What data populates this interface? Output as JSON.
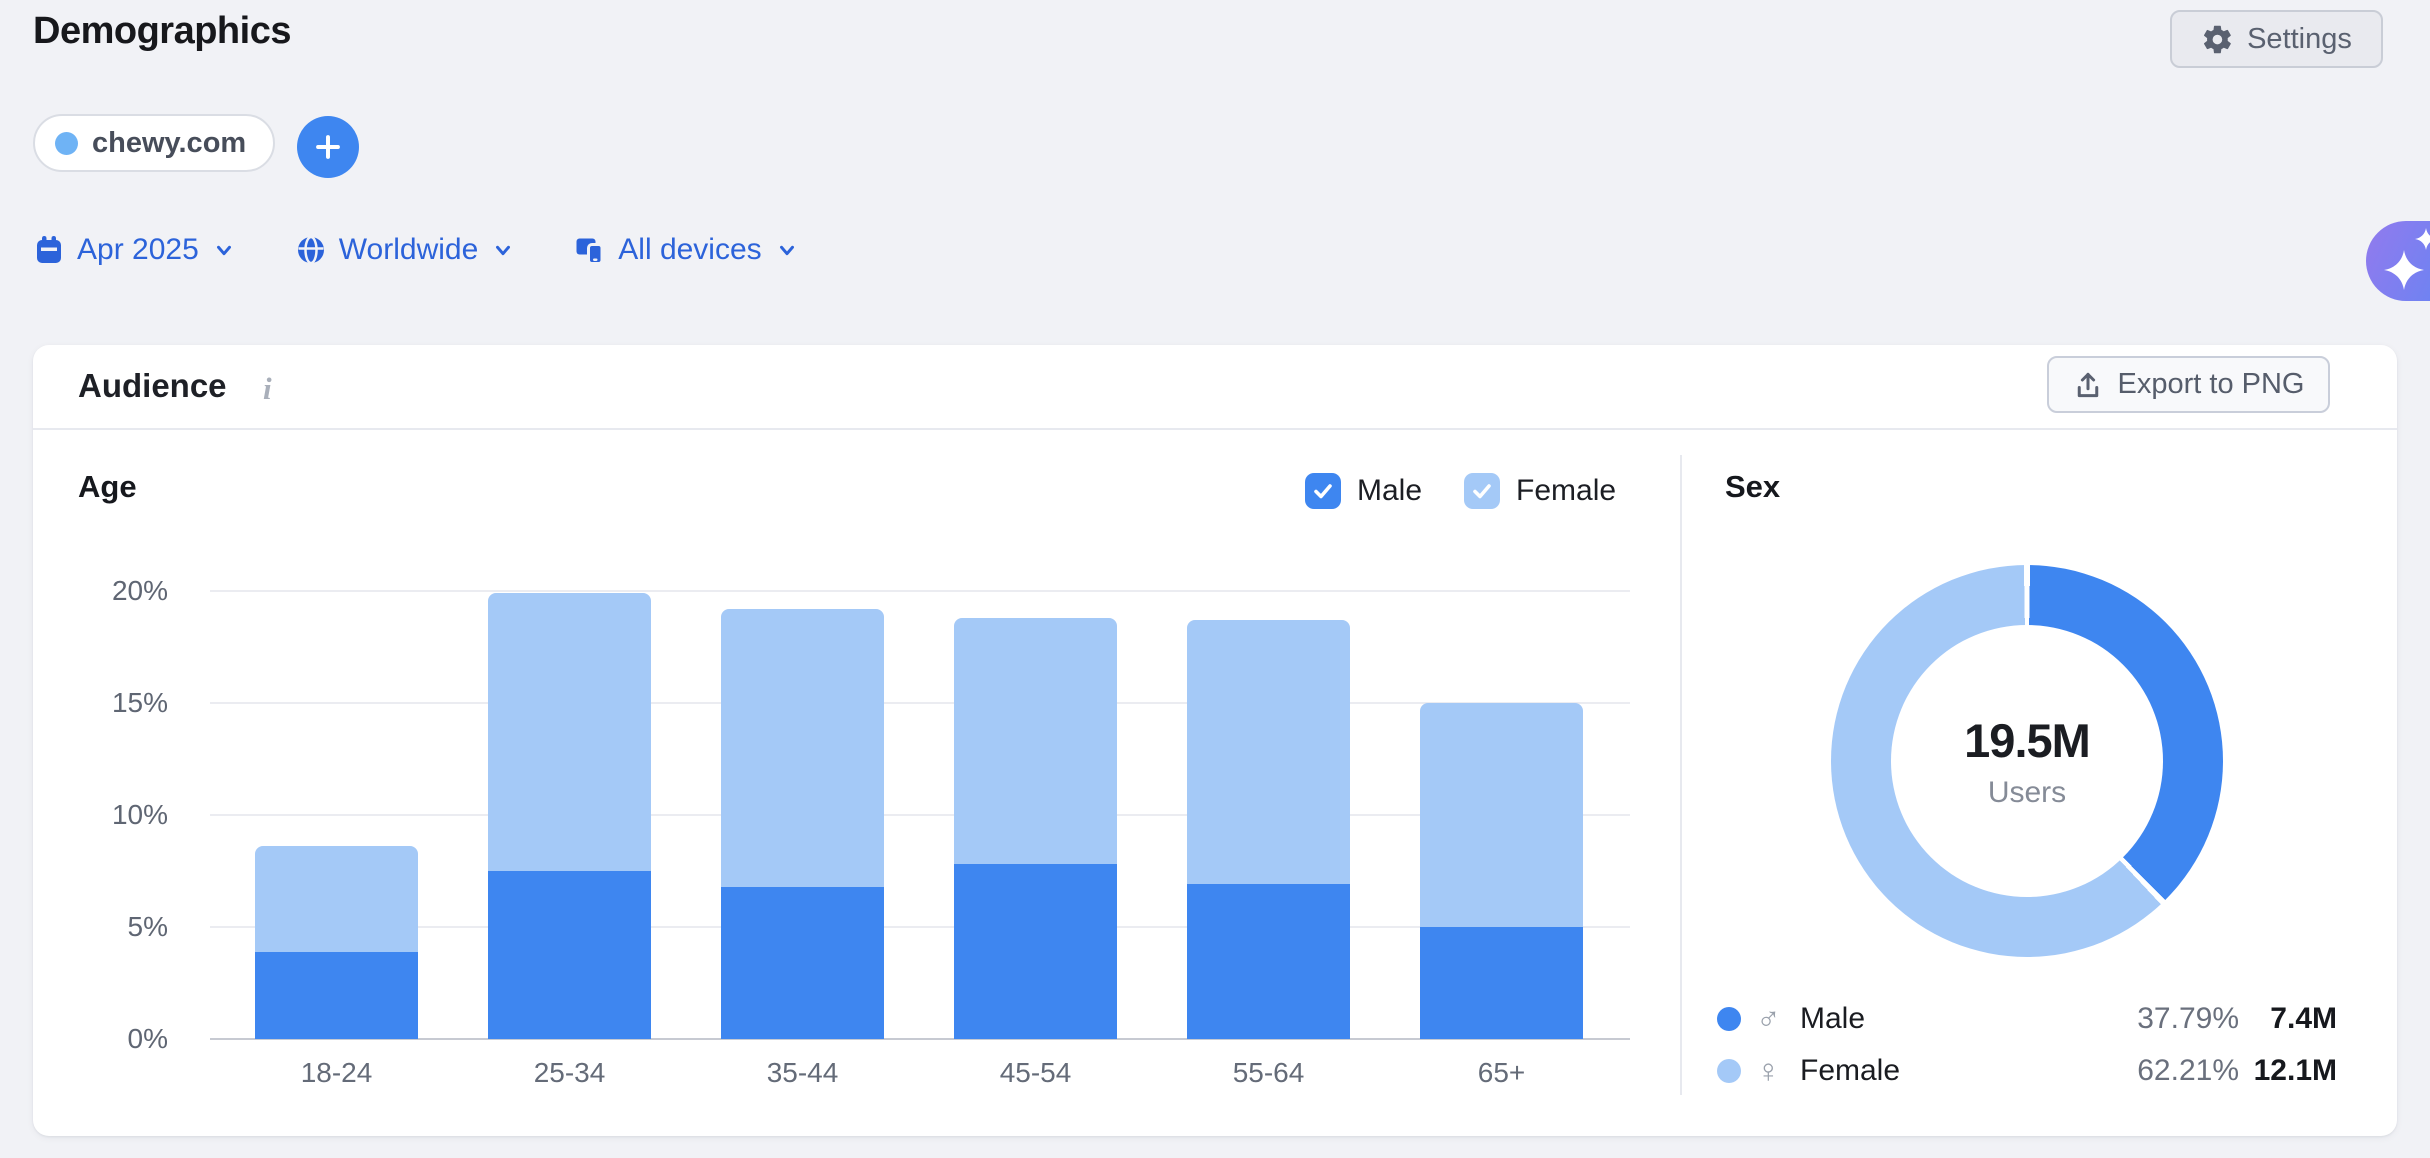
{
  "page": {
    "title": "Demographics"
  },
  "header": {
    "settings_label": "Settings"
  },
  "targets": {
    "domain": "chewy.com",
    "dot_color": "#6FB3F5",
    "add_button_label": "+"
  },
  "filters": {
    "date": "Apr 2025",
    "region": "Worldwide",
    "device": "All devices"
  },
  "card": {
    "title": "Audience",
    "info_icon": "i",
    "export_label": "Export to PNG"
  },
  "age_section": {
    "title": "Age"
  },
  "sex_section": {
    "title": "Sex"
  },
  "colors": {
    "male": "#3E86F0",
    "female": "#A4C9F7",
    "accent_blue": "#2C63DA",
    "grid": "#EBECF1",
    "baseline": "#C7CAD2"
  },
  "chart_data": [
    {
      "type": "bar",
      "stacked": true,
      "title": "Age",
      "categories": [
        "18-24",
        "25-34",
        "35-44",
        "45-54",
        "55-64",
        "65+"
      ],
      "series": [
        {
          "name": "Male",
          "color": "#3E86F0",
          "values": [
            3.9,
            7.5,
            6.8,
            7.8,
            6.9,
            5.0
          ]
        },
        {
          "name": "Female",
          "color": "#A4C9F7",
          "values": [
            4.7,
            12.4,
            12.4,
            11.0,
            11.8,
            10.0
          ]
        }
      ],
      "yticks": [
        {
          "label": "20%",
          "value": 20
        },
        {
          "label": "15%",
          "value": 15
        },
        {
          "label": "10%",
          "value": 10
        },
        {
          "label": "5%",
          "value": 5
        },
        {
          "label": "0%",
          "value": 0
        }
      ],
      "ylim": [
        0,
        20
      ],
      "grid": true,
      "legend_position": "top-right",
      "legend_checked": [
        true,
        true
      ]
    },
    {
      "type": "pie",
      "donut": true,
      "title": "Sex",
      "start_angle": "top",
      "direction": "clockwise",
      "center": {
        "value": "19.5M",
        "label": "Users"
      },
      "series": [
        {
          "label": "Male",
          "symbol": "♂",
          "percent": 37.79,
          "percent_label": "37.79%",
          "users": "7.4M",
          "color": "#3E86F0"
        },
        {
          "label": "Female",
          "symbol": "♀",
          "percent": 62.21,
          "percent_label": "62.21%",
          "users": "12.1M",
          "color": "#A4C9F7"
        }
      ]
    }
  ]
}
